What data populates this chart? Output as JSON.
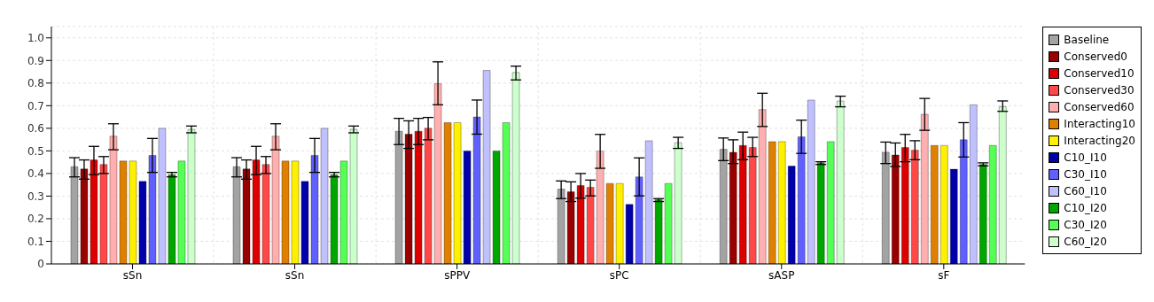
{
  "chart_data": {
    "type": "bar",
    "categories": [
      "sSn",
      "sSn",
      "sPPV",
      "sPC",
      "sASP",
      "sF"
    ],
    "ylim": [
      0,
      1.05
    ],
    "yticks": [
      0,
      0.1,
      0.2,
      0.3,
      0.4,
      0.5,
      0.6,
      0.7,
      0.8,
      0.9,
      {
        "value": 1,
        "label": "1.0"
      }
    ],
    "grid": true,
    "legend": "right",
    "series": [
      {
        "name": "Baseline",
        "color": "#a3a3a3",
        "values": [
          0.43,
          0.43,
          0.587,
          0.331,
          0.507,
          0.494
        ],
        "errors": [
          [
            0.385,
            0.47
          ],
          [
            0.385,
            0.47
          ],
          [
            0.528,
            0.644
          ],
          [
            0.289,
            0.367
          ],
          [
            0.457,
            0.557
          ],
          [
            0.444,
            0.539
          ]
        ]
      },
      {
        "name": "Conserved0",
        "color": "#990000",
        "values": [
          0.42,
          0.42,
          0.574,
          0.319,
          0.494,
          0.482
        ],
        "errors": [
          [
            0.375,
            0.46
          ],
          [
            0.375,
            0.46
          ],
          [
            0.511,
            0.633
          ],
          [
            0.276,
            0.363
          ],
          [
            0.444,
            0.549
          ],
          [
            0.431,
            0.535
          ]
        ]
      },
      {
        "name": "Conserved10",
        "color": "#dd0000",
        "values": [
          0.46,
          0.46,
          0.587,
          0.347,
          0.524,
          0.515
        ],
        "errors": [
          [
            0.395,
            0.52
          ],
          [
            0.395,
            0.52
          ],
          [
            0.528,
            0.644
          ],
          [
            0.291,
            0.4
          ],
          [
            0.461,
            0.583
          ],
          [
            0.452,
            0.573
          ]
        ]
      },
      {
        "name": "Conserved30",
        "color": "#ff4848",
        "values": [
          0.44,
          0.44,
          0.6,
          0.339,
          0.515,
          0.503
        ],
        "errors": [
          [
            0.4,
            0.475
          ],
          [
            0.4,
            0.475
          ],
          [
            0.549,
            0.648
          ],
          [
            0.301,
            0.371
          ],
          [
            0.475,
            0.56
          ],
          [
            0.461,
            0.545
          ]
        ]
      },
      {
        "name": "Conserved60",
        "color": "#ffafaf",
        "values": [
          0.565,
          0.565,
          0.797,
          0.499,
          0.683,
          0.662
        ],
        "errors": [
          [
            0.505,
            0.62
          ],
          [
            0.505,
            0.62
          ],
          [
            0.704,
            0.894
          ],
          [
            0.423,
            0.573
          ],
          [
            0.608,
            0.755
          ],
          [
            0.591,
            0.732
          ]
        ]
      },
      {
        "name": "Interacting10",
        "color": "#e08000",
        "values": [
          0.455,
          0.455,
          0.625,
          0.356,
          0.541,
          0.524
        ]
      },
      {
        "name": "Interacting20",
        "color": "#fff000",
        "values": [
          0.455,
          0.455,
          0.625,
          0.356,
          0.541,
          0.524
        ]
      },
      {
        "name": "C10_I10",
        "color": "#0000aa",
        "values": [
          0.365,
          0.365,
          0.5,
          0.263,
          0.433,
          0.419
        ]
      },
      {
        "name": "C30_I10",
        "color": "#6060ff",
        "values": [
          0.48,
          0.48,
          0.65,
          0.385,
          0.562,
          0.549
        ],
        "errors": [
          [
            0.405,
            0.555
          ],
          [
            0.405,
            0.555
          ],
          [
            0.574,
            0.725
          ],
          [
            0.301,
            0.469
          ],
          [
            0.489,
            0.636
          ],
          [
            0.473,
            0.625
          ]
        ]
      },
      {
        "name": "C60_I10",
        "color": "#c0c0ff",
        "values": [
          0.6,
          0.6,
          0.856,
          0.545,
          0.725,
          0.704
        ]
      },
      {
        "name": "C10_I20",
        "color": "#00a600",
        "values": [
          0.395,
          0.395,
          0.5,
          0.284,
          0.448,
          0.44
        ],
        "errors": [
          [
            0.385,
            0.405
          ],
          [
            0.385,
            0.405
          ],
          null,
          [
            0.276,
            0.289
          ],
          [
            0.44,
            0.452
          ],
          [
            0.434,
            0.447
          ]
        ]
      },
      {
        "name": "C30_I20",
        "color": "#55ff55",
        "values": [
          0.455,
          0.455,
          0.625,
          0.356,
          0.541,
          0.524
        ]
      },
      {
        "name": "C60_I20",
        "color": "#ccffcc",
        "values": [
          0.595,
          0.595,
          0.847,
          0.536,
          0.721,
          0.696
        ],
        "errors": [
          [
            0.58,
            0.61
          ],
          [
            0.58,
            0.61
          ],
          [
            0.814,
            0.875
          ],
          [
            0.511,
            0.56
          ],
          [
            0.695,
            0.742
          ],
          [
            0.675,
            0.721
          ]
        ]
      }
    ]
  }
}
